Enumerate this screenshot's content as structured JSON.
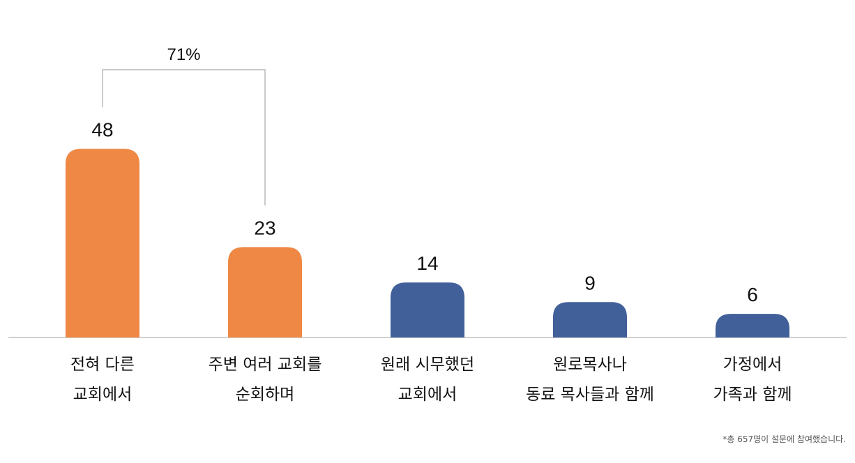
{
  "chart_data": {
    "type": "bar",
    "categories": [
      [
        "전혀 다른",
        "교회에서"
      ],
      [
        "주변 여러 교회를",
        "순회하며"
      ],
      [
        "원래 시무했던",
        "교회에서"
      ],
      [
        "원로목사나",
        "동료 목사들과 함께"
      ],
      [
        "가정에서",
        "가족과 함께"
      ]
    ],
    "values": [
      48,
      23,
      14,
      9,
      6
    ],
    "value_labels": [
      "48",
      "23",
      "14",
      "9",
      "6"
    ],
    "bar_colors": [
      "#EE8844",
      "#EE8844",
      "#415F99",
      "#415F99",
      "#415F99"
    ],
    "bracket": {
      "label": "71%",
      "from_index": 0,
      "to_index": 1
    },
    "ylim": [
      0,
      55
    ],
    "grid": false,
    "footnote": "*총 657명이 설문에 참여했습니다."
  },
  "colors": {
    "orange": "#EE8844",
    "blue": "#415F99",
    "axis": "#D0D0D0",
    "bracket": "#B8B8B8",
    "text": "#111111"
  }
}
